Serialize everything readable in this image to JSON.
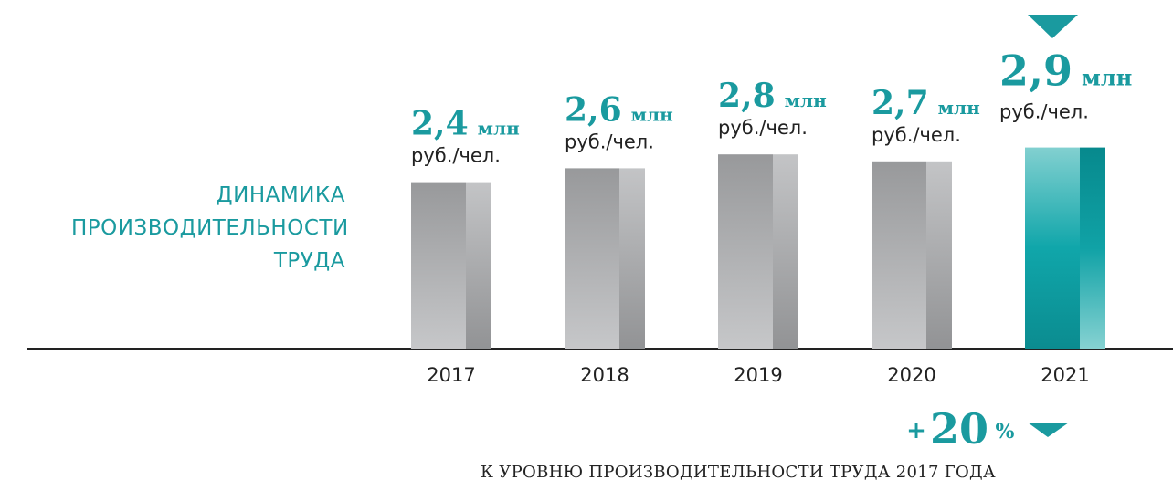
{
  "chart_data": {
    "type": "bar",
    "title": "ДИНАМИКА ПРОИЗВОДИТЕЛЬНОСТИ ТРУДА",
    "categories": [
      "2017",
      "2018",
      "2019",
      "2020",
      "2021"
    ],
    "values": [
      2.4,
      2.6,
      2.8,
      2.7,
      2.9
    ],
    "value_labels": [
      "2,4",
      "2,6",
      "2,8",
      "2,7",
      "2,9"
    ],
    "unit": "млн",
    "unit_sub": "руб./чел.",
    "colors": [
      "gray",
      "gray",
      "gray",
      "gray",
      "teal"
    ],
    "ylim": [
      0,
      5
    ],
    "change": {
      "prefix": "+",
      "value": 20,
      "suffix": "%"
    },
    "caption": "К УРОВНЮ ПРОИЗВОДИТЕЛЬНОСТИ ТРУДА 2017 ГОДА"
  }
}
